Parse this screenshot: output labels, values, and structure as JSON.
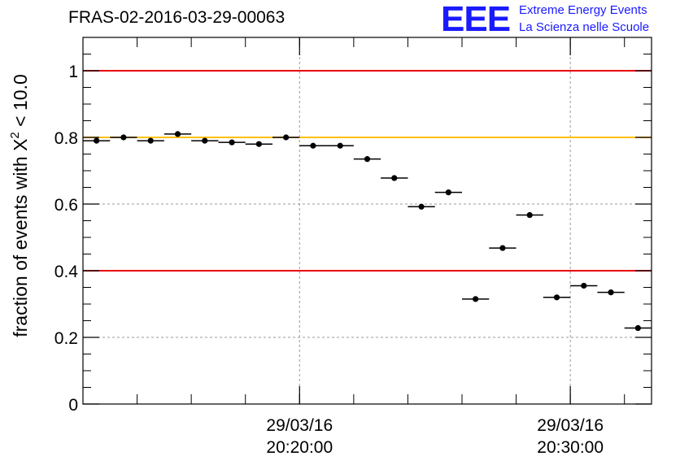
{
  "title": "FRAS-02-2016-03-29-00063",
  "logo": {
    "mark": "EEE",
    "line1": "Extreme Energy Events",
    "line2": "La Scienza nelle Scuole"
  },
  "colors": {
    "threshold_red": "#e8000b",
    "threshold_yellow": "#ffc000",
    "points": "#000000",
    "grid": "#9a9a9a",
    "logo": "#1a1aff"
  },
  "chart_data": {
    "type": "scatter",
    "ylabel_main": "fraction of events with X",
    "ylabel_sup": "2",
    "ylabel_tail": " < 10.0",
    "ylim": [
      0,
      1.1
    ],
    "yticks": [
      {
        "value": 0,
        "label": "0"
      },
      {
        "value": 0.2,
        "label": "0.2"
      },
      {
        "value": 0.4,
        "label": "0.4"
      },
      {
        "value": 0.6,
        "label": "0.6"
      },
      {
        "value": 0.8,
        "label": "0.8"
      },
      {
        "value": 1,
        "label": "1"
      }
    ],
    "xlim": [
      "20:12:00",
      "20:33:00"
    ],
    "xticks": [
      {
        "value": "20:20:00",
        "date": "29/03/16",
        "time": "20:20:00"
      },
      {
        "value": "20:30:00",
        "date": "29/03/16",
        "time": "20:30:00"
      }
    ],
    "grid": true,
    "reference_lines": [
      {
        "y": 1.0,
        "color": "red"
      },
      {
        "y": 0.8,
        "color": "yellow"
      },
      {
        "y": 0.4,
        "color": "red"
      }
    ],
    "bin_width_min": 1,
    "series": [
      {
        "x": [
          "20:12:30",
          "20:13:30",
          "20:14:30",
          "20:15:30",
          "20:16:30",
          "20:17:30",
          "20:18:30",
          "20:19:30",
          "20:20:30",
          "20:21:30",
          "20:22:30",
          "20:23:30",
          "20:24:30",
          "20:25:30",
          "20:26:30",
          "20:27:30",
          "20:28:30",
          "20:29:30",
          "20:30:30",
          "20:31:30",
          "20:32:30"
        ],
        "y": [
          0.79,
          0.8,
          0.79,
          0.81,
          0.79,
          0.785,
          0.78,
          0.8,
          0.775,
          0.775,
          0.735,
          0.678,
          0.592,
          0.635,
          0.315,
          0.468,
          0.567,
          0.32,
          0.355,
          0.335,
          0.228
        ]
      }
    ]
  }
}
